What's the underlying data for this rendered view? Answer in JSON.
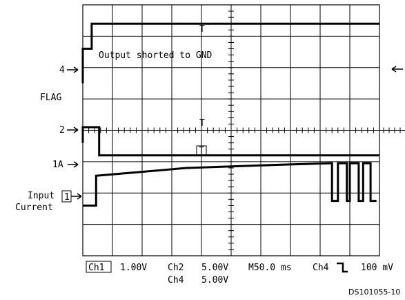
{
  "chart_data": {
    "type": "line",
    "grid": true,
    "x": {
      "divisions": 10,
      "time_per_div_ms": 50.0
    },
    "y": {
      "divisions": 8
    },
    "left_labels": {
      "ch4_marker": "4",
      "flag": "FLAG",
      "ch2_marker": "2",
      "current_level": "1A",
      "input_current": "Input\nCurrent",
      "ch1_box": "1"
    },
    "annotations": {
      "shorted": "Output shorted to GND",
      "trigger_t1": "T",
      "trigger_t2": "T",
      "trigger_box": "T"
    },
    "status": {
      "ch1": "Ch1",
      "ch1_scale": "1.00V",
      "ch2": "Ch2",
      "ch2_scale": "5.00V",
      "ch4": "Ch4",
      "ch4_scale": "5.00V",
      "timebase": "M50.0 ms",
      "trigger_src": "Ch4",
      "trigger_level": "100 mV"
    },
    "figure_id": "DS101055-10",
    "series": [
      {
        "name": "Ch4",
        "points": [
          [
            0,
            2.5
          ],
          [
            0,
            1.4
          ],
          [
            0.3,
            1.4
          ],
          [
            0.3,
            0.6
          ],
          [
            10,
            0.6
          ]
        ]
      },
      {
        "name": "Ch2",
        "points": [
          [
            0,
            4.4
          ],
          [
            0,
            3.9
          ],
          [
            0.55,
            3.9
          ],
          [
            0.55,
            4.8
          ],
          [
            10,
            4.8
          ]
        ]
      },
      {
        "name": "Ch1",
        "points": [
          [
            0,
            6.4
          ],
          [
            0.45,
            6.4
          ],
          [
            0.45,
            5.45
          ],
          [
            3.5,
            5.2
          ],
          [
            6.6,
            5.1
          ],
          [
            8.4,
            5.05
          ],
          [
            8.4,
            6.25
          ],
          [
            8.6,
            6.25
          ],
          [
            8.6,
            5.05
          ],
          [
            8.9,
            5.05
          ],
          [
            8.9,
            6.25
          ],
          [
            9.0,
            6.25
          ],
          [
            9.0,
            5.05
          ],
          [
            9.3,
            5.05
          ],
          [
            9.3,
            6.25
          ],
          [
            9.45,
            6.25
          ],
          [
            9.45,
            5.05
          ],
          [
            9.7,
            5.05
          ],
          [
            9.7,
            6.25
          ],
          [
            9.9,
            6.25
          ]
        ]
      }
    ]
  }
}
